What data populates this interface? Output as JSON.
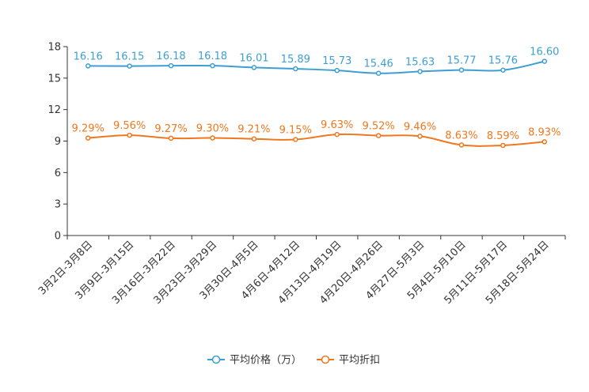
{
  "chart_data": {
    "type": "line",
    "title": "",
    "xlabel": "",
    "ylabel": "",
    "ylim": [
      0,
      18
    ],
    "yticks": [
      0,
      3,
      6,
      9,
      12,
      15,
      18
    ],
    "categories": [
      "3月2日-3月8日",
      "3月9日-3月15日",
      "3月16日-3月22日",
      "3月23日-3月29日",
      "3月30日-4月5日",
      "4月6日-4月12日",
      "4月13日-4月19日",
      "4月20日-4月26日",
      "4月27日-5月3日",
      "5月4日-5月10日",
      "5月11日-5月17日",
      "5月18日-5月24日"
    ],
    "series": [
      {
        "name": "平均价格（万）",
        "color": "#3d9fd1",
        "values": [
          16.16,
          16.15,
          16.18,
          16.18,
          16.01,
          15.89,
          15.73,
          15.46,
          15.63,
          15.77,
          15.76,
          16.6
        ],
        "labels": [
          "16.16",
          "16.15",
          "16.18",
          "16.18",
          "16.01",
          "15.89",
          "15.73",
          "15.46",
          "15.63",
          "15.77",
          "15.76",
          "16.60"
        ]
      },
      {
        "name": "平均折扣",
        "color": "#f0771d",
        "values": [
          9.29,
          9.56,
          9.27,
          9.3,
          9.21,
          9.15,
          9.63,
          9.52,
          9.46,
          8.63,
          8.59,
          8.93
        ],
        "labels": [
          "9.29%",
          "9.56%",
          "9.27%",
          "9.30%",
          "9.21%",
          "9.15%",
          "9.63%",
          "9.52%",
          "9.46%",
          "8.63%",
          "8.59%",
          "8.93%"
        ]
      }
    ],
    "grid": false,
    "legend": "bottom-center"
  }
}
